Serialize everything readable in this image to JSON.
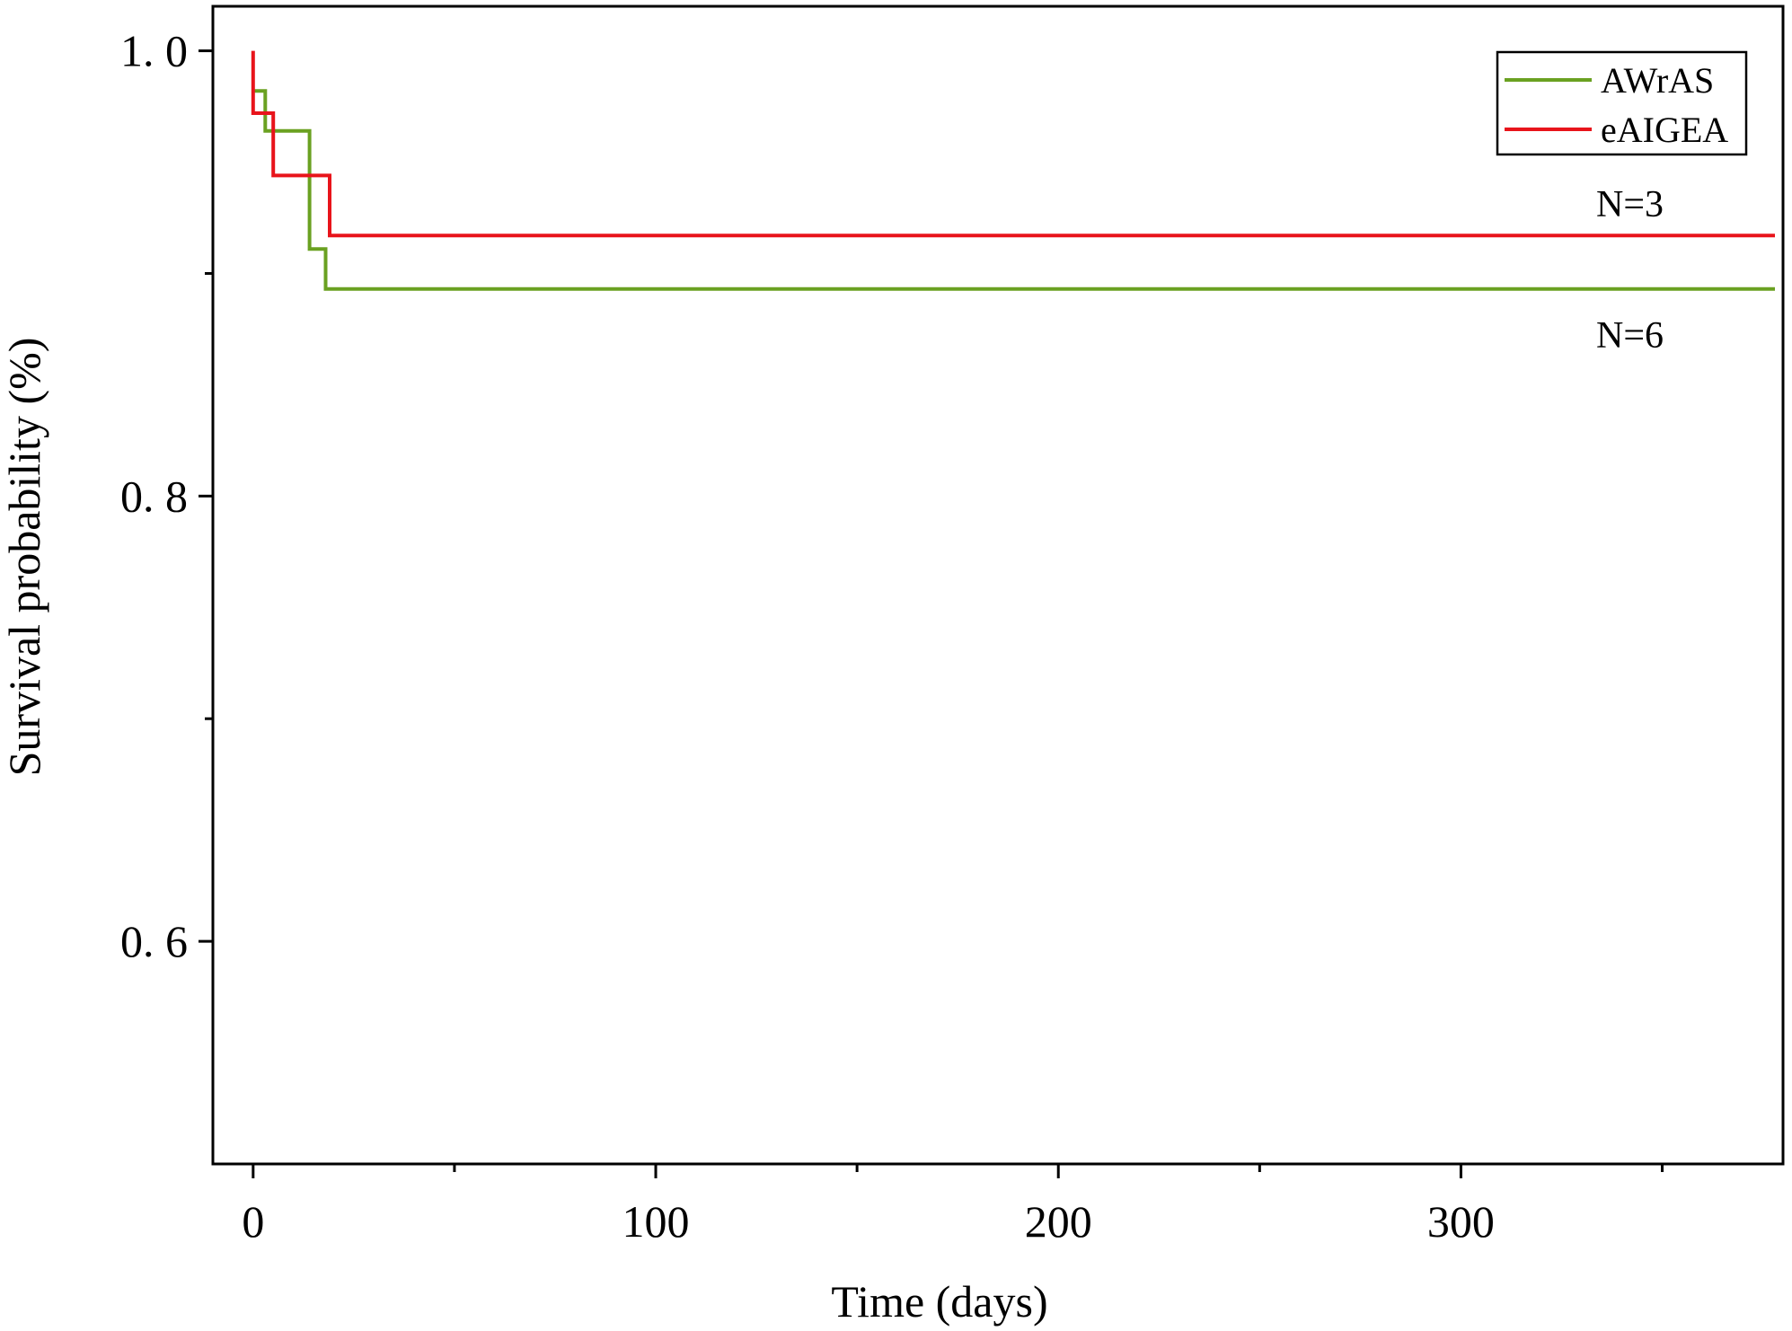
{
  "chart_data": {
    "type": "line",
    "xlabel": "Time (days)",
    "ylabel": "Survival probability (%)",
    "xlim": [
      -10,
      380
    ],
    "ylim": [
      0.5,
      1.02
    ],
    "x_ticks": [
      0,
      100,
      200,
      300
    ],
    "x_tick_labels": [
      "0",
      "100",
      "200",
      "300"
    ],
    "x_minor_ticks": [
      50,
      150,
      250,
      350
    ],
    "y_ticks": [
      0.6,
      0.8,
      1.0
    ],
    "y_tick_labels": [
      "0. 6",
      "0. 8",
      "1. 0"
    ],
    "y_minor_ticks": [
      0.7,
      0.9
    ],
    "grid": false,
    "legend_position": "top-right",
    "step": true,
    "series": [
      {
        "name": "AWrAS",
        "color": "#6aa121",
        "x": [
          0,
          3,
          3,
          14,
          14,
          18,
          18,
          378
        ],
        "y": [
          0.982,
          0.982,
          0.964,
          0.964,
          0.911,
          0.911,
          0.893,
          0.893
        ]
      },
      {
        "name": "eAIGEA",
        "color": "#e8141b",
        "x": [
          0,
          0,
          5,
          5,
          19,
          19,
          378
        ],
        "y": [
          1.0,
          0.972,
          0.972,
          0.944,
          0.944,
          0.917,
          0.917
        ]
      }
    ],
    "annotations": [
      {
        "text": "N=3",
        "series": "eAIGEA"
      },
      {
        "text": "N=6",
        "series": "AWrAS"
      }
    ]
  }
}
